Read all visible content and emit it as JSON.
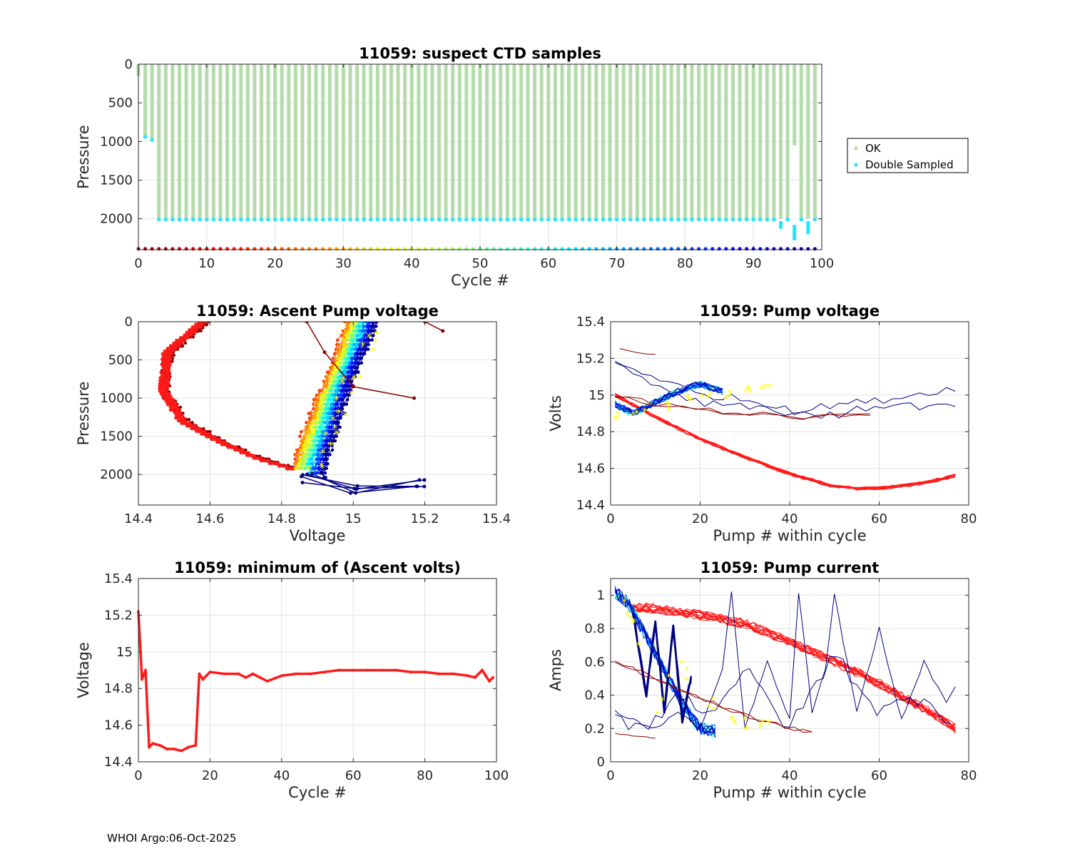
{
  "footer": "WHOI Argo:06-Oct-2025",
  "colors": {
    "ok": "#b4dcaa",
    "double": "#22e6ff",
    "red": "#ff1a1a",
    "darkred": "#8b0000",
    "navy": "#00007f",
    "yellow": "#ffff00",
    "grid": "#e3e3e3"
  },
  "chart_data": [
    {
      "id": "ctd",
      "type": "bar",
      "title": "11059: suspect CTD samples",
      "xlabel": "Cycle #",
      "ylabel": "Pressure",
      "xlim": [
        0,
        100
      ],
      "ylim": [
        2400,
        0
      ],
      "xticks": [
        "0",
        "10",
        "20",
        "30",
        "40",
        "50",
        "60",
        "70",
        "80",
        "90",
        "100"
      ],
      "yticks": [
        "0",
        "500",
        "1000",
        "1500",
        "2000"
      ],
      "legend": {
        "placement": "outside-right",
        "entries": [
          "OK",
          "Double Sampled"
        ]
      },
      "ok_profiles": {
        "cycles": [
          0,
          1,
          2,
          "3-99"
        ],
        "max_pressure": [
          150,
          930,
          960,
          2000
        ]
      },
      "ok_exceptions": [
        {
          "cycle": 96,
          "max_pressure": 1050
        }
      ],
      "double_sampled": [
        {
          "cycle": 1,
          "from": 920,
          "to": 960
        },
        {
          "cycle": 2,
          "from": 960,
          "to": 1000
        },
        {
          "cycle": 94,
          "from": 2030,
          "to": 2130
        },
        {
          "cycle": 96,
          "from": 2080,
          "to": 2280
        },
        {
          "cycle": 98,
          "from": 2030,
          "to": 2200
        },
        {
          "cycle": 99,
          "from": 1990,
          "to": 2030
        }
      ],
      "cycle_strip_pressure": 2390
    },
    {
      "id": "ascent",
      "type": "scatter",
      "title": "11059: Ascent Pump voltage",
      "xlabel": "Voltage",
      "ylabel": "Pressure",
      "xlim": [
        14.4,
        15.4
      ],
      "ylim": [
        2400,
        0
      ],
      "xticks": [
        "14.4",
        "14.6",
        "14.8",
        "15",
        "15.2",
        "15.4"
      ],
      "yticks": [
        "0",
        "500",
        "1000",
        "1500",
        "2000"
      ],
      "groups": [
        {
          "name": "early cycles (dark red)",
          "curve": [
            [
              14.59,
              0
            ],
            [
              14.49,
              400
            ],
            [
              14.47,
              900
            ],
            [
              14.53,
              1300
            ],
            [
              14.65,
              1600
            ],
            [
              14.75,
              1800
            ],
            [
              14.85,
              1920
            ]
          ]
        },
        {
          "name": "low-voltage cycles (red)",
          "curve": [
            [
              14.58,
              0
            ],
            [
              14.48,
              400
            ],
            [
              14.47,
              900
            ],
            [
              14.52,
              1300
            ],
            [
              14.64,
              1600
            ],
            [
              14.74,
              1800
            ],
            [
              14.83,
              1930
            ]
          ]
        },
        {
          "name": "mid cycles (yellow-green)",
          "curve": [
            [
              14.98,
              0
            ],
            [
              14.95,
              500
            ],
            [
              14.9,
              1000
            ],
            [
              14.86,
              1500
            ],
            [
              14.83,
              1900
            ]
          ]
        },
        {
          "name": "late cycles (blue)",
          "curve": [
            [
              15.07,
              0
            ],
            [
              15.02,
              500
            ],
            [
              14.98,
              1000
            ],
            [
              14.95,
              1500
            ],
            [
              14.92,
              2050
            ]
          ]
        },
        {
          "name": "cycle 0 stray",
          "points": [
            [
              14.87,
              0
            ],
            [
              14.92,
              400
            ],
            [
              15.0,
              850
            ],
            [
              15.17,
              1000
            ]
          ]
        },
        {
          "name": "cycle 2 stray",
          "points": [
            [
              15.2,
              0
            ],
            [
              15.25,
              120
            ]
          ]
        },
        {
          "name": "deep navy",
          "points": [
            [
              14.87,
              2050
            ],
            [
              15.0,
              2200
            ],
            [
              15.19,
              2100
            ]
          ]
        }
      ]
    },
    {
      "id": "pumpv",
      "type": "line",
      "title": "11059: Pump voltage",
      "xlabel": "Pump # within cycle",
      "ylabel": "Volts",
      "xlim": [
        0,
        80
      ],
      "ylim": [
        14.4,
        15.4
      ],
      "xticks": [
        "0",
        "20",
        "40",
        "60",
        "80"
      ],
      "yticks": [
        "15.4",
        "15.2",
        "15",
        "14.8",
        "14.6",
        "14.4"
      ],
      "series": [
        {
          "name": "red descending group",
          "x": [
            1,
            10,
            20,
            30,
            40,
            50,
            55,
            60,
            70,
            77
          ],
          "y": [
            15.0,
            14.88,
            14.76,
            14.66,
            14.57,
            14.5,
            14.49,
            14.49,
            14.52,
            14.56
          ]
        },
        {
          "name": "navy long A",
          "x": [
            1,
            10,
            20,
            30,
            40,
            50,
            60,
            77
          ],
          "y": [
            15.18,
            15.1,
            15.0,
            14.98,
            14.9,
            14.95,
            14.97,
            15.04
          ]
        },
        {
          "name": "navy long B",
          "x": [
            1,
            10,
            20,
            30,
            40,
            50,
            60,
            77
          ],
          "y": [
            15.17,
            15.06,
            14.96,
            14.95,
            14.92,
            14.88,
            14.95,
            14.93
          ]
        },
        {
          "name": "blue/green cluster",
          "x": [
            1,
            5,
            10,
            15,
            20,
            25
          ],
          "y": [
            14.95,
            14.9,
            14.96,
            15.02,
            15.06,
            15.02
          ]
        },
        {
          "name": "yellow markers",
          "x": [
            1,
            5,
            10,
            15,
            20,
            25,
            30,
            33
          ],
          "y": [
            14.88,
            14.9,
            14.92,
            14.95,
            14.98,
            15.0,
            15.02,
            15.02
          ]
        },
        {
          "name": "dark red short",
          "x": [
            2,
            10
          ],
          "y": [
            15.25,
            15.22
          ]
        }
      ]
    },
    {
      "id": "minv",
      "type": "line",
      "title": "11059: minimum of (Ascent volts)",
      "xlabel": "Cycle #",
      "ylabel": "Voltage",
      "xlim": [
        0,
        100
      ],
      "ylim": [
        14.4,
        15.4
      ],
      "xticks": [
        "0",
        "20",
        "40",
        "60",
        "80",
        "100"
      ],
      "yticks": [
        "15.4",
        "15.2",
        "15",
        "14.8",
        "14.6",
        "14.4"
      ],
      "x": [
        0,
        1,
        2,
        3,
        4,
        6,
        8,
        10,
        12,
        14,
        16,
        17,
        18,
        20,
        24,
        28,
        30,
        32,
        34,
        36,
        40,
        44,
        48,
        52,
        56,
        60,
        64,
        68,
        72,
        76,
        80,
        84,
        88,
        92,
        94,
        96,
        97,
        98,
        99
      ],
      "y": [
        15.22,
        14.85,
        14.9,
        14.48,
        14.5,
        14.49,
        14.47,
        14.47,
        14.46,
        14.48,
        14.49,
        14.88,
        14.85,
        14.89,
        14.88,
        14.88,
        14.86,
        14.88,
        14.86,
        14.84,
        14.87,
        14.88,
        14.88,
        14.89,
        14.9,
        14.9,
        14.9,
        14.9,
        14.9,
        14.89,
        14.89,
        14.88,
        14.88,
        14.87,
        14.86,
        14.9,
        14.87,
        14.84,
        14.86
      ]
    },
    {
      "id": "pumpc",
      "type": "line",
      "title": "11059: Pump current",
      "xlabel": "Pump # within cycle",
      "ylabel": "Amps",
      "xlim": [
        0,
        80
      ],
      "ylim": [
        0,
        1.1
      ],
      "xticks": [
        "0",
        "20",
        "40",
        "60",
        "80"
      ],
      "yticks": [
        "1",
        "0.8",
        "0.6",
        "0.4",
        "0.2",
        "0"
      ],
      "series": [
        {
          "name": "red descending group",
          "x": [
            5,
            10,
            20,
            30,
            40,
            50,
            60,
            70,
            77
          ],
          "y": [
            0.93,
            0.92,
            0.88,
            0.83,
            0.72,
            0.6,
            0.47,
            0.32,
            0.2
          ]
        },
        {
          "name": "blue fast decay",
          "x": [
            1,
            4,
            8,
            12,
            16,
            20,
            24
          ],
          "y": [
            1.02,
            0.95,
            0.75,
            0.55,
            0.35,
            0.2,
            0.18
          ]
        },
        {
          "name": "navy erratic",
          "x": [
            1,
            5,
            10,
            15,
            20,
            25,
            27,
            30,
            35,
            40,
            42,
            45,
            48,
            50,
            55,
            60,
            65,
            70,
            75,
            77
          ],
          "y": [
            0.3,
            0.25,
            0.2,
            0.3,
            0.2,
            0.55,
            1.02,
            0.2,
            0.6,
            0.25,
            1.02,
            0.3,
            0.55,
            1.0,
            0.3,
            0.8,
            0.25,
            0.6,
            0.35,
            0.45
          ]
        },
        {
          "name": "dark red diagonal",
          "x": [
            1,
            10,
            20,
            30,
            40,
            45
          ],
          "y": [
            0.6,
            0.5,
            0.38,
            0.28,
            0.2,
            0.18
          ]
        },
        {
          "name": "yellow markers",
          "x": [
            2,
            5,
            10,
            15,
            20,
            25,
            30,
            33
          ],
          "y": [
            1.0,
            0.85,
            0.3,
            0.6,
            0.4,
            0.3,
            0.22,
            0.21
          ]
        }
      ]
    }
  ]
}
